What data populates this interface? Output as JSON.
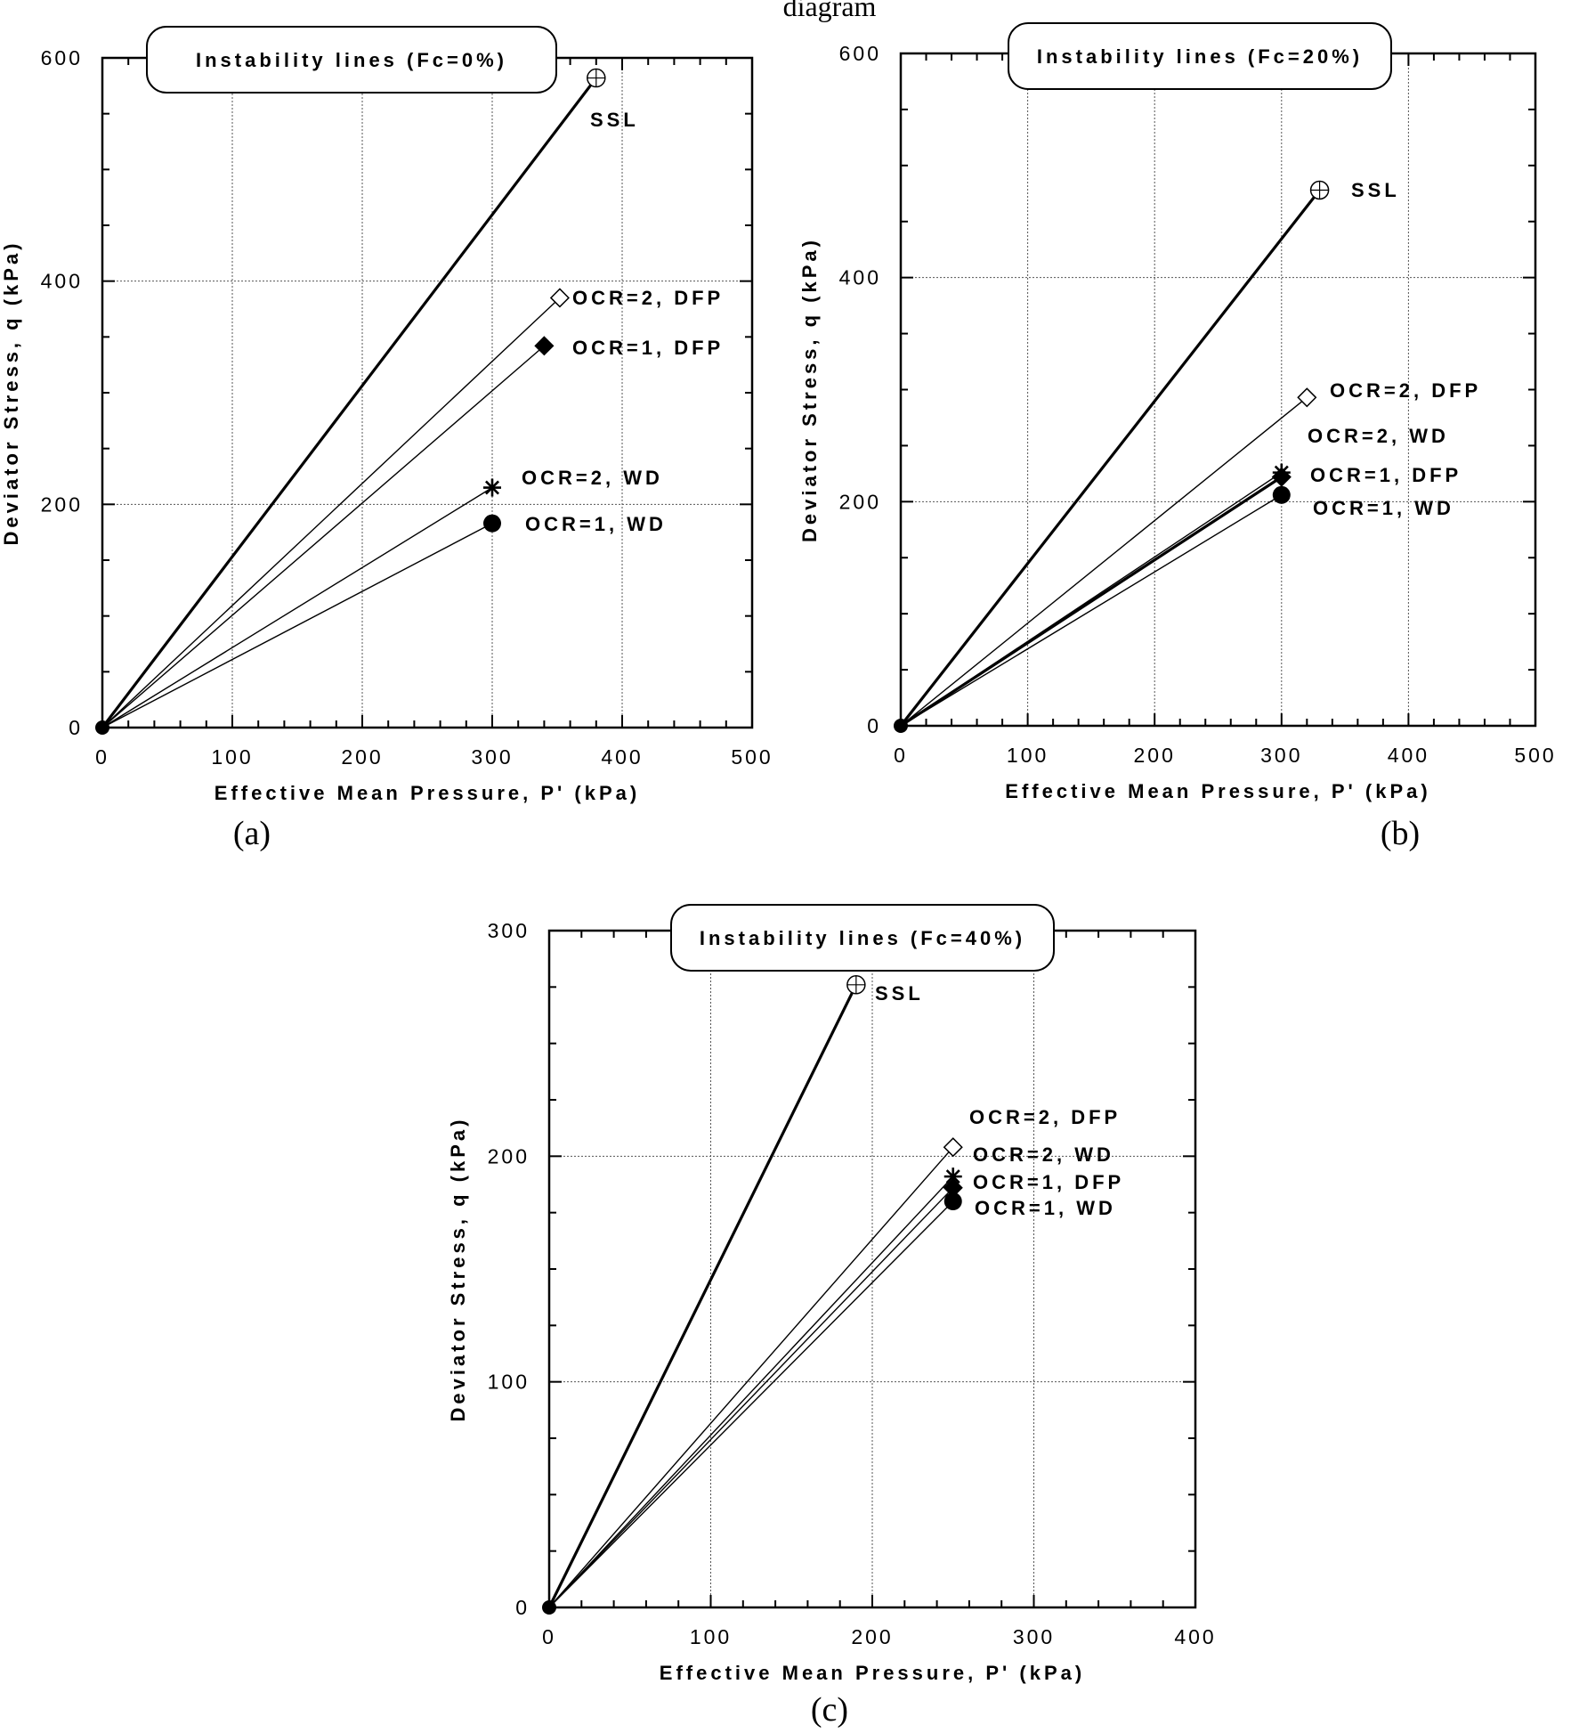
{
  "page": {
    "top_caption": "diagram"
  },
  "chart_data": [
    {
      "type": "line",
      "panel": "(a)",
      "title": "Instability lines (Fc=0%)",
      "xlabel": "Effective Mean Pressure, P' (kPa)",
      "ylabel": "Deviator Stress, q (kPa)",
      "xlim": [
        0,
        500
      ],
      "ylim": [
        0,
        600
      ],
      "xticks": [
        0,
        100,
        200,
        300,
        400,
        500
      ],
      "yticks": [
        0,
        200,
        400,
        600
      ],
      "grid": true,
      "series": [
        {
          "name": "SSL",
          "marker": "crosscircle",
          "bold": true,
          "x": [
            0,
            380
          ],
          "y": [
            0,
            582
          ]
        },
        {
          "name": "OCR=2, DFP",
          "marker": "diamond-open",
          "bold": false,
          "x": [
            0,
            352
          ],
          "y": [
            0,
            385
          ]
        },
        {
          "name": "OCR=1, DFP",
          "marker": "diamond-filled",
          "bold": false,
          "x": [
            0,
            340
          ],
          "y": [
            0,
            342
          ]
        },
        {
          "name": "OCR=2, WD",
          "marker": "star",
          "bold": false,
          "x": [
            0,
            300
          ],
          "y": [
            0,
            215
          ]
        },
        {
          "name": "OCR=1, WD",
          "marker": "circle-filled",
          "bold": false,
          "x": [
            0,
            300
          ],
          "y": [
            0,
            183
          ]
        }
      ]
    },
    {
      "type": "line",
      "panel": "(b)",
      "title": "Instability lines (Fc=20%)",
      "xlabel": "Effective Mean Pressure, P' (kPa)",
      "ylabel": "Deviator Stress, q (kPa)",
      "xlim": [
        0,
        500
      ],
      "ylim": [
        0,
        600
      ],
      "xticks": [
        0,
        100,
        200,
        300,
        400,
        500
      ],
      "yticks": [
        0,
        200,
        400,
        600
      ],
      "grid": true,
      "series": [
        {
          "name": "SSL",
          "marker": "crosscircle",
          "bold": true,
          "x": [
            0,
            330
          ],
          "y": [
            0,
            478
          ]
        },
        {
          "name": "OCR=2, DFP",
          "marker": "diamond-open",
          "bold": false,
          "x": [
            0,
            320
          ],
          "y": [
            0,
            293
          ]
        },
        {
          "name": "OCR=2, WD",
          "marker": "star",
          "bold": false,
          "x": [
            0,
            300
          ],
          "y": [
            0,
            226
          ]
        },
        {
          "name": "OCR=1, DFP",
          "marker": "diamond-filled",
          "bold": true,
          "x": [
            0,
            300
          ],
          "y": [
            0,
            222
          ]
        },
        {
          "name": "OCR=1, WD",
          "marker": "circle-filled",
          "bold": false,
          "x": [
            0,
            300
          ],
          "y": [
            0,
            206
          ]
        }
      ]
    },
    {
      "type": "line",
      "panel": "(c)",
      "title": "Instability lines (Fc=40%)",
      "xlabel": "Effective Mean Pressure, P' (kPa)",
      "ylabel": "Deviator Stress, q (kPa)",
      "xlim": [
        0,
        400
      ],
      "ylim": [
        0,
        300
      ],
      "xticks": [
        0,
        100,
        200,
        300,
        400
      ],
      "yticks": [
        0,
        100,
        200,
        300
      ],
      "grid": true,
      "series": [
        {
          "name": "SSL",
          "marker": "crosscircle",
          "bold": true,
          "x": [
            0,
            190
          ],
          "y": [
            0,
            276
          ]
        },
        {
          "name": "OCR=2, DFP",
          "marker": "diamond-open",
          "bold": false,
          "x": [
            0,
            250
          ],
          "y": [
            0,
            204
          ]
        },
        {
          "name": "OCR=2, WD",
          "marker": "star",
          "bold": false,
          "x": [
            0,
            250
          ],
          "y": [
            0,
            191
          ]
        },
        {
          "name": "OCR=1, DFP",
          "marker": "diamond-filled",
          "bold": false,
          "x": [
            0,
            250
          ],
          "y": [
            0,
            186
          ]
        },
        {
          "name": "OCR=1, WD",
          "marker": "circle-filled",
          "bold": false,
          "x": [
            0,
            250
          ],
          "y": [
            0,
            180
          ]
        }
      ]
    }
  ]
}
